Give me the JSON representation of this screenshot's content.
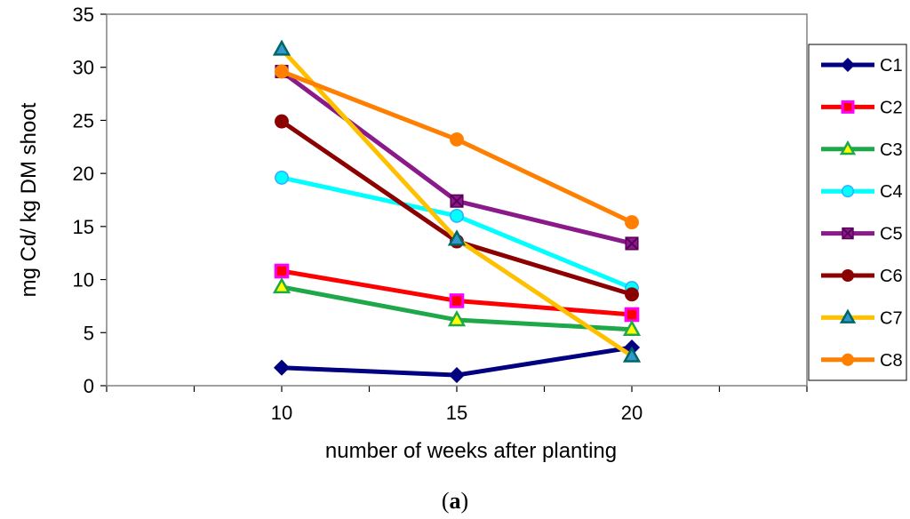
{
  "chart_data": {
    "type": "line",
    "title": "",
    "xlabel": "number of weeks after planting",
    "ylabel": "mg Cd/ kg DM shoot",
    "caption_letter": "a",
    "x": [
      10,
      15,
      20
    ],
    "xlim": [
      5,
      25
    ],
    "ylim": [
      0,
      35
    ],
    "x_ticks": [
      10,
      15,
      20
    ],
    "y_ticks": [
      0,
      5,
      10,
      15,
      20,
      25,
      30,
      35
    ],
    "grid": false,
    "legend_position": "right",
    "series": [
      {
        "name": "C1",
        "values": [
          1.7,
          1.0,
          3.6
        ],
        "color": "#000080",
        "marker": "diamond",
        "marker_fill": "#000080",
        "marker_stroke": "#000080"
      },
      {
        "name": "C2",
        "values": [
          10.8,
          8.0,
          6.7
        ],
        "color": "#ff0000",
        "marker": "square",
        "marker_fill": "#ff0000",
        "marker_stroke": "#ff00ff"
      },
      {
        "name": "C3",
        "values": [
          9.3,
          6.2,
          5.3
        ],
        "color": "#1fa84a",
        "marker": "triangle",
        "marker_fill": "#ffff00",
        "marker_stroke": "#1fa84a"
      },
      {
        "name": "C4",
        "values": [
          19.6,
          16.0,
          9.2
        ],
        "color": "#00ffff",
        "marker": "circle",
        "marker_fill": "#00ffff",
        "marker_stroke": "#33aaff"
      },
      {
        "name": "C5",
        "values": [
          29.6,
          17.4,
          13.4
        ],
        "color": "#8a1a8a",
        "marker": "xsquare",
        "marker_fill": "#8a1a8a",
        "marker_stroke": "#5a005a"
      },
      {
        "name": "C6",
        "values": [
          24.9,
          13.6,
          8.6
        ],
        "color": "#8b0000",
        "marker": "circle",
        "marker_fill": "#8b0000",
        "marker_stroke": "#8b0000"
      },
      {
        "name": "C7",
        "values": [
          31.7,
          13.8,
          2.8
        ],
        "color": "#ffc000",
        "marker": "triangle",
        "marker_fill": "#3399cc",
        "marker_stroke": "#006666"
      },
      {
        "name": "C8",
        "values": [
          29.6,
          23.2,
          15.4
        ],
        "color": "#ff7f00",
        "marker": "circle",
        "marker_fill": "#ff7f00",
        "marker_stroke": "#ff7f00"
      }
    ]
  }
}
